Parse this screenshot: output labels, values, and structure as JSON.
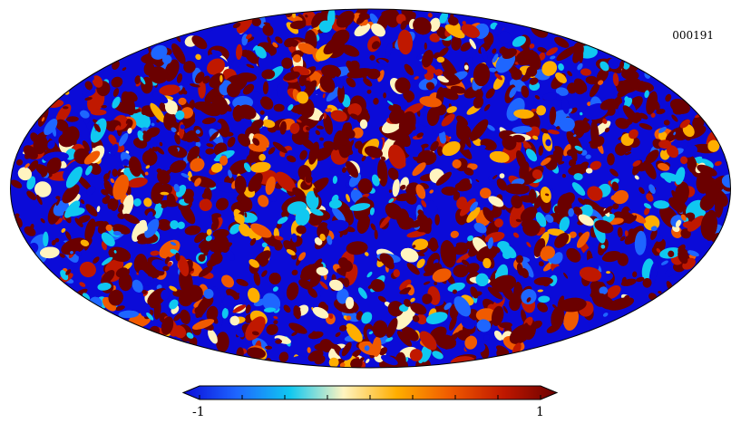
{
  "map": {
    "label": "000191",
    "projection": "mollweide",
    "colormap": [
      "#0b0bd8",
      "#1e66ff",
      "#10c8f0",
      "#fff4c0",
      "#ffae00",
      "#f05a00",
      "#c01800",
      "#6b0000"
    ]
  },
  "colorbar": {
    "min_label": "-1",
    "max_label": "1",
    "tick_count": 9
  }
}
